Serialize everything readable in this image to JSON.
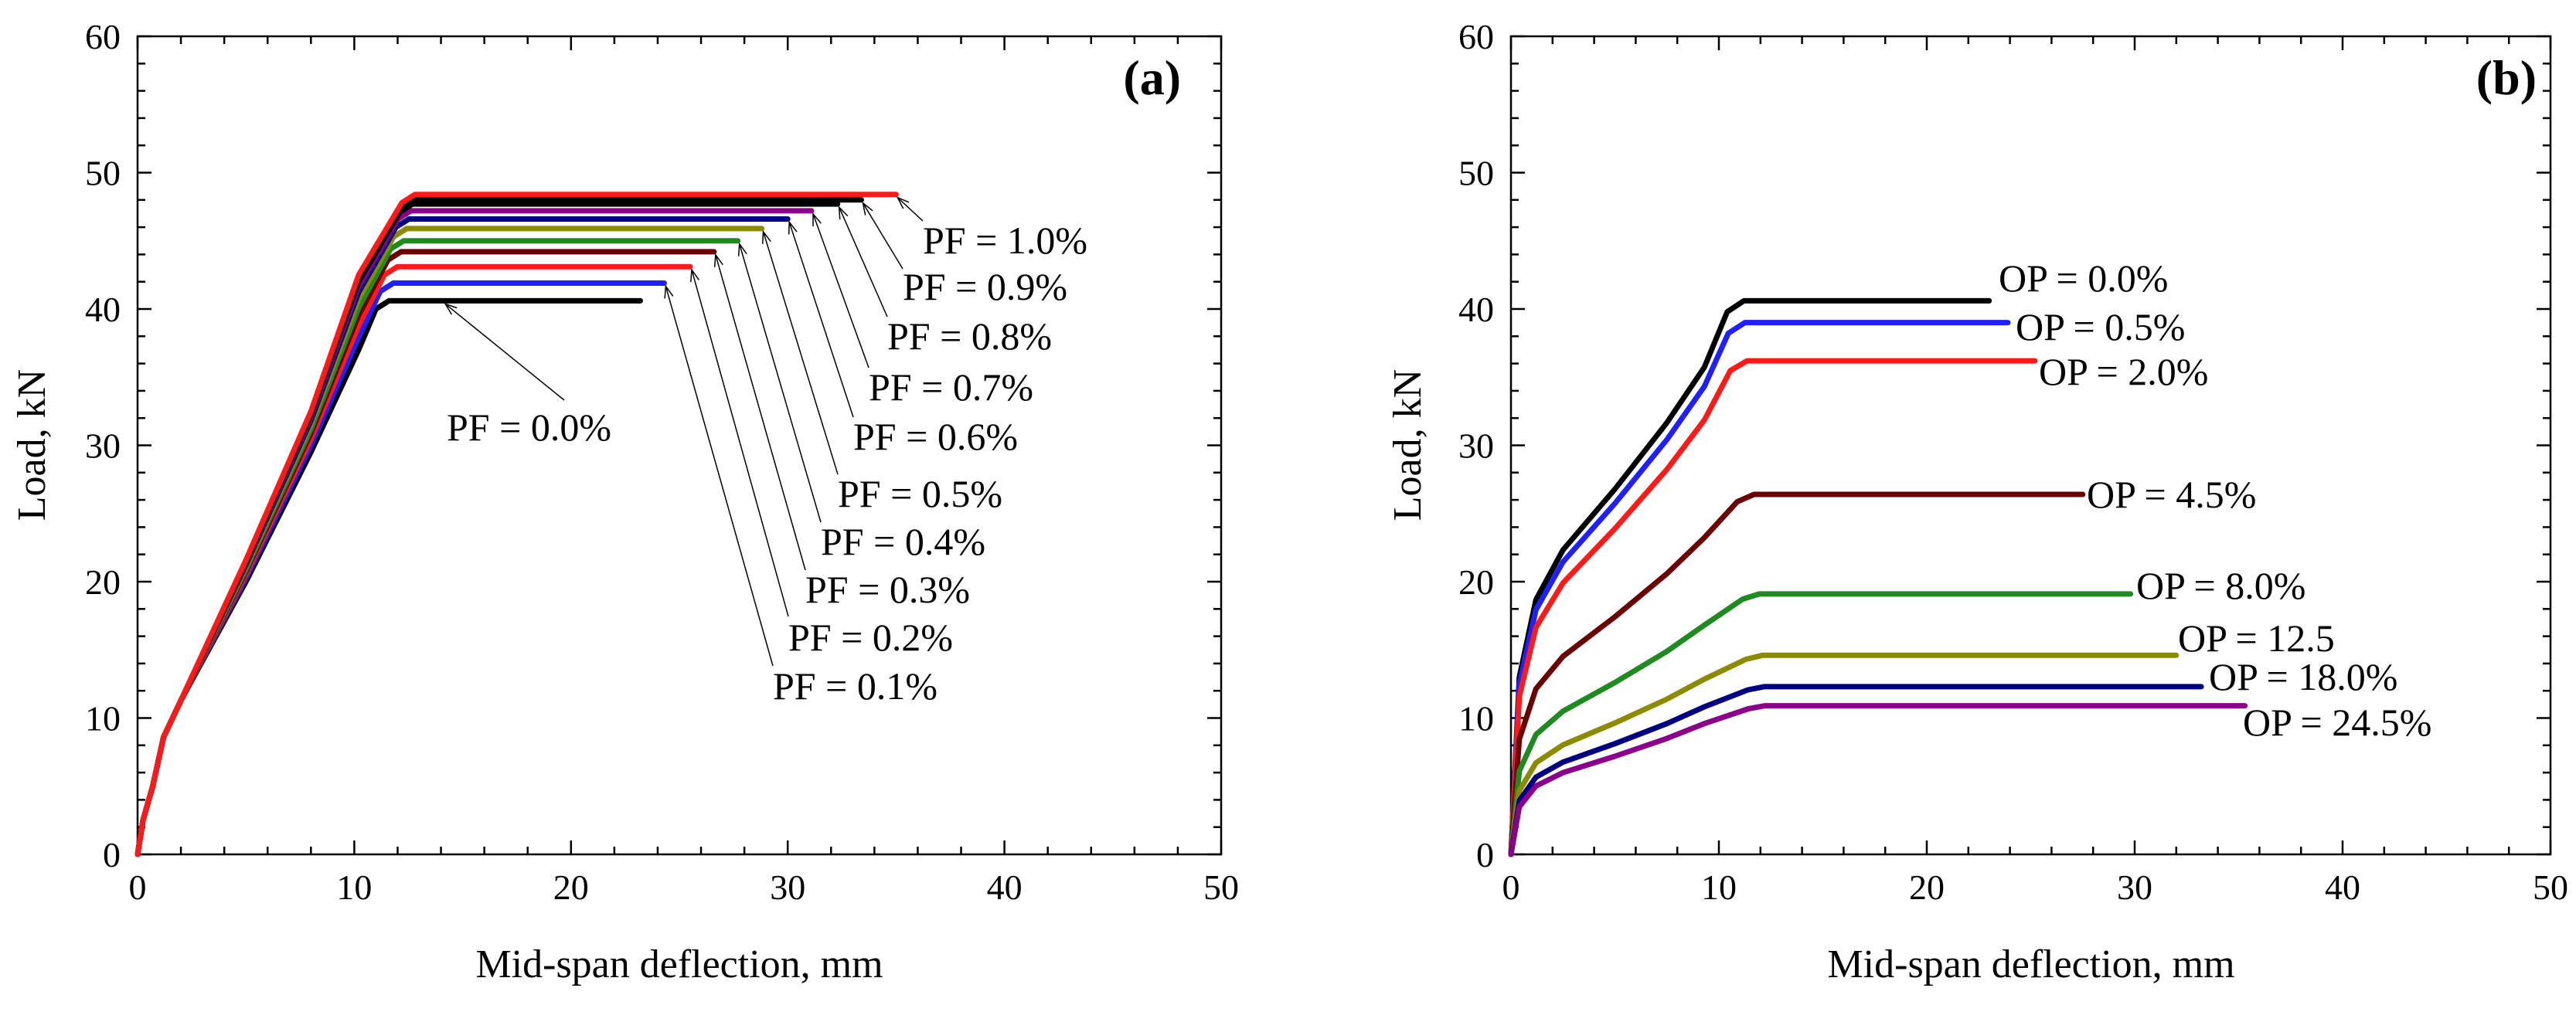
{
  "chart_data": [
    {
      "type": "line",
      "panel_label": "(a)",
      "xlabel": "Mid-span deflection, mm",
      "ylabel": "Load, kN",
      "xlim": [
        0,
        50
      ],
      "ylim": [
        0,
        60
      ],
      "xticks": [
        0,
        10,
        20,
        30,
        40,
        50
      ],
      "yticks": [
        0,
        10,
        20,
        30,
        40,
        50,
        60
      ],
      "series": [
        {
          "name": "PF = 0.0%",
          "label": "PF = 0.0%",
          "color": "#000000",
          "peak": 40.6,
          "end_x": 23.2
        },
        {
          "name": "PF = 0.1%",
          "label": "PF = 0.1%",
          "color": "#1f1fff",
          "peak": 41.9,
          "end_x": 24.3
        },
        {
          "name": "PF = 0.2%",
          "label": "PF = 0.2%",
          "color": "#ff1a1a",
          "peak": 43.1,
          "end_x": 25.5
        },
        {
          "name": "PF = 0.3%",
          "label": "PF = 0.3%",
          "color": "#6b0000",
          "peak": 44.2,
          "end_x": 26.6
        },
        {
          "name": "PF = 0.4%",
          "label": "PF = 0.4%",
          "color": "#1f8a1f",
          "peak": 45.0,
          "end_x": 27.7
        },
        {
          "name": "PF = 0.5%",
          "label": "PF = 0.5%",
          "color": "#8b8b00",
          "peak": 45.9,
          "end_x": 28.8
        },
        {
          "name": "PF = 0.6%",
          "label": "PF = 0.6%",
          "color": "#000080",
          "peak": 46.6,
          "end_x": 30.0
        },
        {
          "name": "PF = 0.7%",
          "label": "PF = 0.7%",
          "color": "#8b008b",
          "peak": 47.2,
          "end_x": 31.1
        },
        {
          "name": "PF = 0.8%",
          "label": "PF = 0.8%",
          "color": "#000000",
          "peak": 47.7,
          "end_x": 32.3
        },
        {
          "name": "PF = 0.9%",
          "label": "PF = 0.9%",
          "color": "#000000",
          "peak": 48.0,
          "end_x": 33.4
        },
        {
          "name": "PF = 1.0%",
          "label": "PF = 1.0%",
          "color": "#ff1a1a",
          "peak": 48.4,
          "end_x": 35.0
        }
      ]
    },
    {
      "type": "line",
      "panel_label": "(b)",
      "xlabel": "Mid-span deflection, mm",
      "ylabel": "Load, kN",
      "xlim": [
        0,
        50
      ],
      "ylim": [
        0,
        60
      ],
      "xticks": [
        0,
        10,
        20,
        30,
        40,
        50
      ],
      "yticks": [
        0,
        10,
        20,
        30,
        40,
        50,
        60
      ],
      "series": [
        {
          "name": "OP = 0.0%",
          "label": "OP = 0.0%",
          "color": "#000000",
          "peak": 40.6,
          "end_x": 23.0
        },
        {
          "name": "OP = 0.5%",
          "label": "OP = 0.5%",
          "color": "#1f1fff",
          "peak": 39.0,
          "end_x": 23.9
        },
        {
          "name": "OP = 2.0%",
          "label": "OP = 2.0%",
          "color": "#ff1a1a",
          "peak": 36.2,
          "end_x": 25.2
        },
        {
          "name": "OP = 4.5%",
          "label": "OP = 4.5%",
          "color": "#6b0000",
          "peak": 26.4,
          "end_x": 27.5
        },
        {
          "name": "OP = 8.0%",
          "label": "OP = 8.0%",
          "color": "#1f8a1f",
          "peak": 19.1,
          "end_x": 29.8
        },
        {
          "name": "OP = 12.5",
          "label": "OP = 12.5",
          "color": "#8b8b00",
          "peak": 14.6,
          "end_x": 32.0
        },
        {
          "name": "OP = 18.0%",
          "label": "OP = 18.0%",
          "color": "#000080",
          "peak": 12.3,
          "end_x": 33.2
        },
        {
          "name": "OP = 24.5%",
          "label": "OP = 24.5%",
          "color": "#8b008b",
          "peak": 10.9,
          "end_x": 35.3
        }
      ]
    }
  ]
}
